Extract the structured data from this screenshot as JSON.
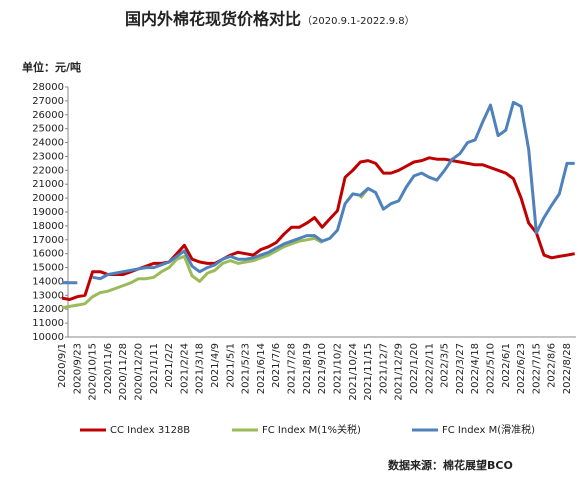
{
  "chart_data": {
    "type": "line",
    "title": "国内外棉花现货价格对比",
    "subtitle": "（2020.9.1-2022.9.8）",
    "unit_label": "单位：元/吨",
    "source": "数据来源：棉花展望BCO",
    "x": [
      "2020/9/1",
      null,
      "2020/9/23",
      null,
      "2020/10/15",
      null,
      "2020/11/6",
      null,
      "2020/11/28",
      null,
      "2020/12/20",
      null,
      "2021/1/11",
      null,
      "2021/2/2",
      null,
      "2021/2/24",
      null,
      "2021/3/18",
      null,
      "2021/4/9",
      null,
      "2021/5/1",
      null,
      "2021/5/23",
      null,
      "2021/6/14",
      null,
      "2021/7/6",
      null,
      "2021/7/28",
      null,
      "2021/8/19",
      null,
      "2021/9/10",
      null,
      "2021/10/2",
      null,
      "2021/10/24",
      null,
      "2021/11/15",
      null,
      "2021/12/7",
      null,
      "2021/12/29",
      null,
      "2022/1/20",
      null,
      "2022/2/11",
      null,
      "2022/3/5",
      null,
      "2022/3/27",
      null,
      "2022/4/18",
      null,
      "2022/5/10",
      null,
      "2022/6/1",
      null,
      "2022/6/23",
      null,
      "2022/7/15",
      null,
      "2022/8/6",
      null,
      "2022/8/28",
      null
    ],
    "series": [
      {
        "name": "CC Index 3128B",
        "color": "#c00000",
        "values": [
          12800,
          12700,
          12900,
          13000,
          14700,
          14700,
          14500,
          14500,
          14500,
          14700,
          14900,
          15100,
          15300,
          15300,
          15400,
          16000,
          16600,
          15600,
          15400,
          15300,
          15300,
          15600,
          15900,
          16100,
          16000,
          15900,
          16300,
          16500,
          16800,
          17400,
          17900,
          17900,
          18200,
          18600,
          17900,
          18500,
          19100,
          21500,
          22000,
          22600,
          22700,
          22500,
          21800,
          21800,
          22000,
          22300,
          22600,
          22700,
          22900,
          22800,
          22800,
          22700,
          22600,
          22500,
          22400,
          22400,
          22200,
          22000,
          21800,
          21400,
          20000,
          18200,
          17500,
          15900,
          15700,
          15800,
          15900,
          16000
        ]
      },
      {
        "name": "FC Index M(1%关税)",
        "color": "#9bbb59",
        "values": [
          12100,
          12200,
          12300,
          12400,
          12900,
          13200,
          13300,
          13500,
          13700,
          13900,
          14200,
          14200,
          14300,
          14700,
          15000,
          15600,
          15800,
          14400,
          14000,
          14600,
          14800,
          15300,
          15500,
          15300,
          15400,
          15500,
          15700,
          15900,
          16200,
          16500,
          16700,
          16900,
          17000,
          17100,
          16800,
          null,
          null,
          null,
          null,
          20000,
          20700,
          null,
          null,
          null,
          null,
          null,
          null,
          null,
          null,
          null,
          null,
          null,
          null,
          null,
          null,
          null,
          null,
          null,
          null,
          null,
          null,
          null,
          null,
          null,
          null,
          null,
          null,
          null
        ]
      },
      {
        "name": "FC Index M(滑准税)",
        "color": "#4f81bd",
        "values": [
          13900,
          13900,
          13900,
          null,
          14300,
          14200,
          14500,
          14600,
          14700,
          14800,
          14900,
          15000,
          15000,
          15200,
          15400,
          15800,
          16200,
          15100,
          14700,
          15000,
          15200,
          15600,
          15800,
          15600,
          15600,
          15700,
          15900,
          16100,
          16400,
          16700,
          16900,
          17100,
          17300,
          17300,
          16900,
          17100,
          17700,
          19600,
          20300,
          20200,
          20700,
          20400,
          19200,
          19600,
          19800,
          20800,
          21600,
          21800,
          21500,
          21300,
          22000,
          22800,
          23200,
          24000,
          24200,
          25500,
          26700,
          24500,
          24900,
          26900,
          26600,
          23500,
          17500,
          18600,
          19500,
          20300,
          22500,
          22500
        ]
      }
    ],
    "ylim": [
      10000,
      28000
    ],
    "yticks": [
      10000,
      11000,
      12000,
      13000,
      14000,
      15000,
      16000,
      17000,
      18000,
      19000,
      20000,
      21000,
      22000,
      23000,
      24000,
      25000,
      26000,
      27000,
      28000
    ],
    "grid": false,
    "legend": "bottom"
  }
}
